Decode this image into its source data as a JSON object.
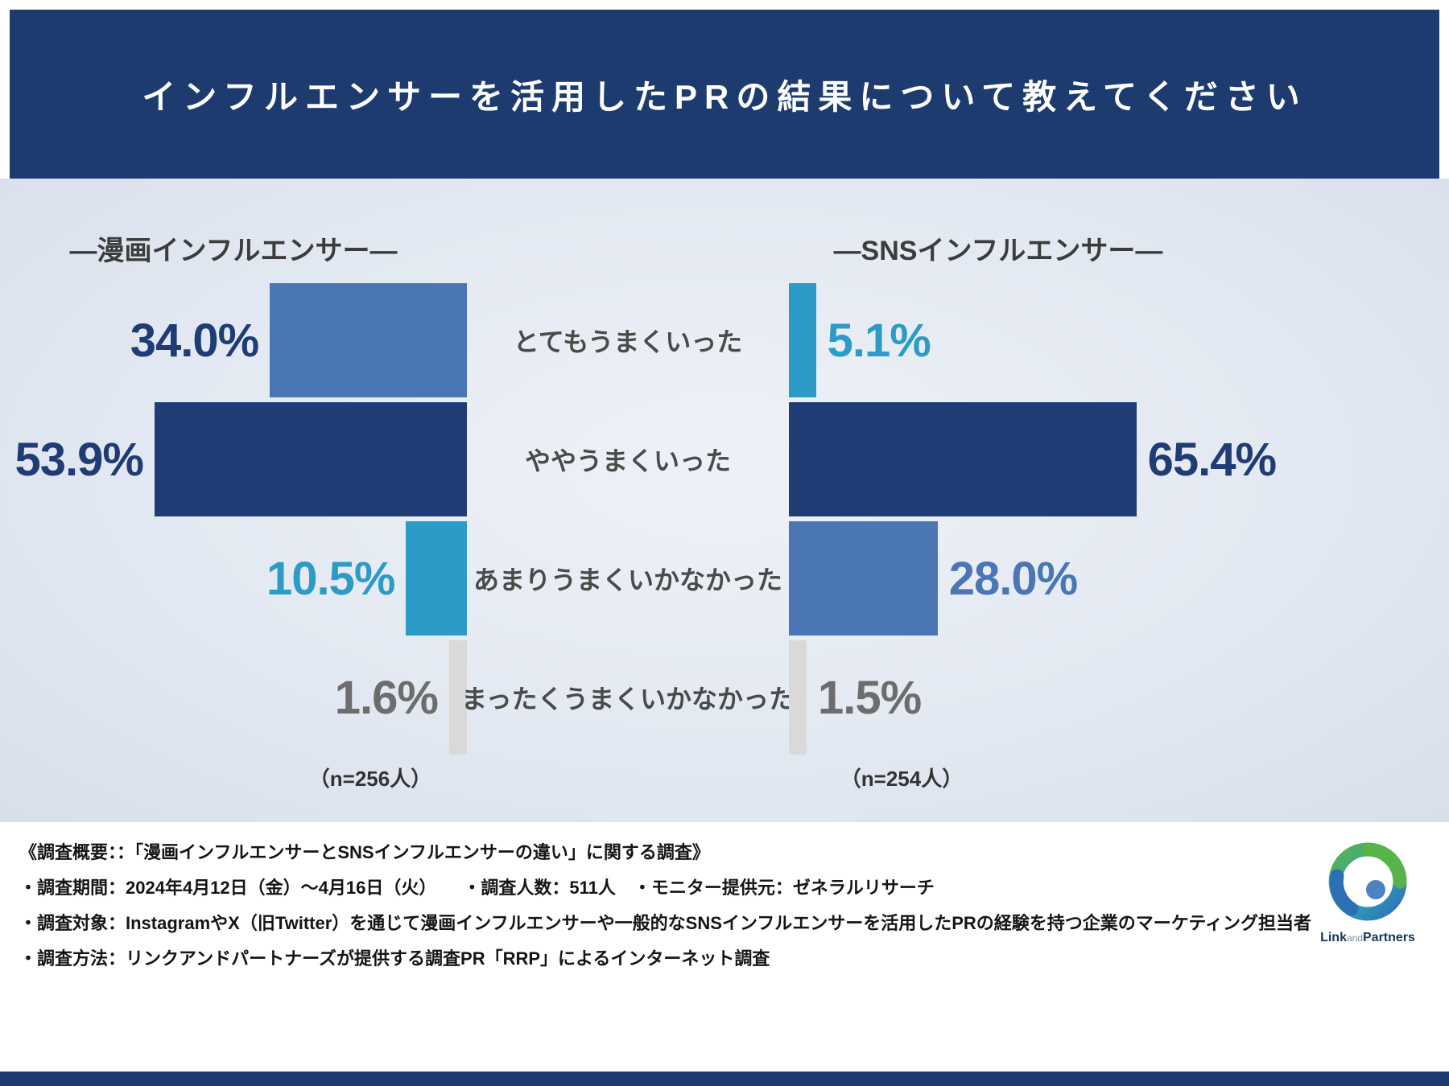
{
  "header": {
    "title": "インフルエンサーを活用したPRの結果について教えてください"
  },
  "chart_data": {
    "type": "bar",
    "orientation": "horizontal_mirrored",
    "grid": false,
    "legend_position": "none",
    "xlim": [
      0,
      70
    ],
    "categories": [
      "とてもうまくいった",
      "ややうまくいった",
      "あまりうまくいかなかった",
      "まったくうまくいかなかった"
    ],
    "series": [
      {
        "name": "漫画インフルエンサー",
        "display_title": "―漫画インフルエンサー―",
        "n": 256,
        "n_label": "（n=256人）",
        "values": [
          34.0,
          53.9,
          10.5,
          1.6
        ],
        "value_labels": [
          "34.0%",
          "53.9%",
          "10.5%",
          "1.6%"
        ]
      },
      {
        "name": "SNSインフルエンサー",
        "display_title": "―SNSインフルエンサー―",
        "n": 254,
        "n_label": "（n=254人）",
        "values": [
          5.1,
          65.4,
          28.0,
          1.5
        ],
        "value_labels": [
          "5.1%",
          "65.4%",
          "28.0%",
          "1.5%"
        ]
      }
    ],
    "bar_colors": {
      "left": [
        "#4a77b4",
        "#1f3c74",
        "#2d9bc7",
        "#d9d9d9"
      ],
      "right": [
        "#2d9bc7",
        "#1f3c74",
        "#4a77b4",
        "#d9d9d9"
      ]
    },
    "value_label_colors": {
      "left": [
        "#1f3c74",
        "#1f3c74",
        "#2d9bc7",
        "#6d6d6d"
      ],
      "right": [
        "#2d9bc7",
        "#1f3c74",
        "#4a77b4",
        "#6d6d6d"
      ]
    }
  },
  "footer": {
    "lines": [
      "《調査概要：：「漫画インフルエンサーとSNSインフルエンサーの違い」に関する調査》",
      "・調査期間：2024年4月12日（金）～4月16日（火）　　・調査人数：511人　・モニター提供元：ゼネラルリサーチ",
      "・調査対象：InstagramやX（旧Twitter）を通じて漫画インフルエンサーや一般的なSNSインフルエンサーを活用したPRの経験を持つ企業のマーケティング担当者",
      "・調査方法：リンクアンドパートナーズが提供する調査PR「RRP」によるインターネット調査"
    ]
  },
  "logo": {
    "part1": "Link",
    "part2": "and",
    "part3": "Partners"
  },
  "colors": {
    "header_bg": "#1d3b6f",
    "navy": "#1f3c74",
    "medium_blue": "#4a77b4",
    "cyan_blue": "#2d9bc7",
    "gray_bar": "#d9d9d9"
  }
}
